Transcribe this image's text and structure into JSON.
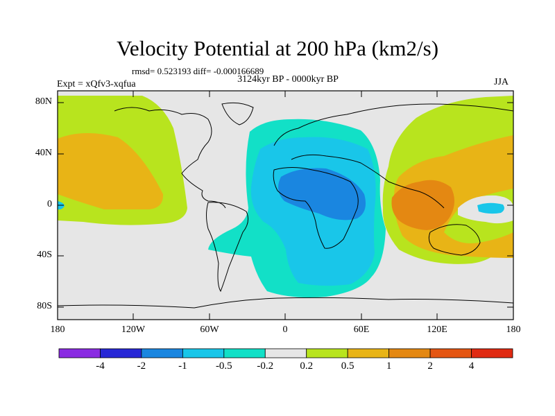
{
  "title": "Velocity Potential at 200 hPa (km2/s)",
  "stats_line": "rmsd= 0.523193 diff= -0.000166689",
  "period_line": "3124kyr BP - 0000kyr BP",
  "experiment_label": "Expt = xQfv3-xqfua",
  "season": "JJA",
  "lat_labels": [
    "80N",
    "40N",
    "0",
    "40S",
    "80S"
  ],
  "lon_labels": [
    "180",
    "120W",
    "60W",
    "0",
    "60E",
    "120E",
    "180"
  ],
  "colorbar": {
    "colors": [
      "#8a2be2",
      "#2727d6",
      "#1a86e0",
      "#19c6e9",
      "#12e0c7",
      "#e6e6e6",
      "#b8e41e",
      "#e8b416",
      "#e48812",
      "#e45512",
      "#e02a12"
    ],
    "labels": [
      "-4",
      "-2",
      "-1",
      "-0.5",
      "-0.2",
      "0.2",
      "0.5",
      "1",
      "2",
      "4"
    ]
  }
}
